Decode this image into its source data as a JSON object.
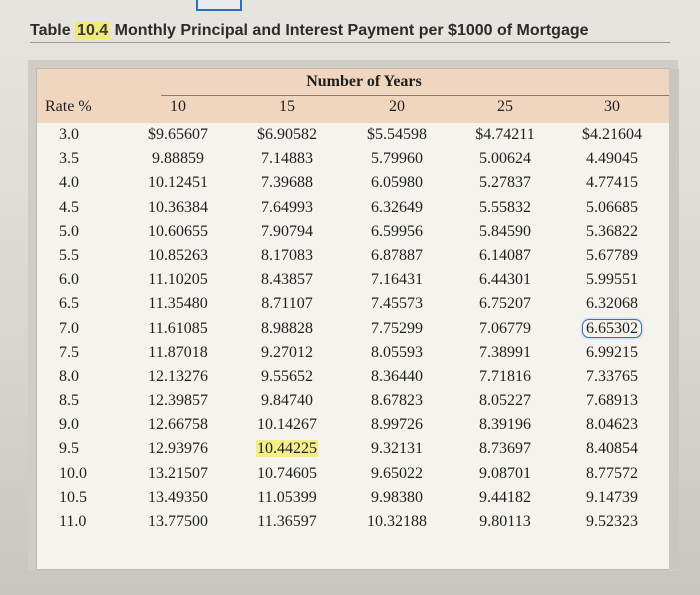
{
  "caption": {
    "prefix": "Table ",
    "number": "10.4",
    "title": " Monthly Principal and Interest Payment per $1000 of Mortgage"
  },
  "table": {
    "group_header": "Number of Years",
    "columns": [
      "Rate %",
      "10",
      "15",
      "20",
      "25",
      "30"
    ],
    "rows": [
      [
        "3.0",
        "$9.65607",
        "$6.90582",
        "$5.54598",
        "$4.74211",
        "$4.21604"
      ],
      [
        "3.5",
        "9.88859",
        "7.14883",
        "5.79960",
        "5.00624",
        "4.49045"
      ],
      [
        "4.0",
        "10.12451",
        "7.39688",
        "6.05980",
        "5.27837",
        "4.77415"
      ],
      [
        "4.5",
        "10.36384",
        "7.64993",
        "6.32649",
        "5.55832",
        "5.06685"
      ],
      [
        "5.0",
        "10.60655",
        "7.90794",
        "6.59956",
        "5.84590",
        "5.36822"
      ],
      [
        "5.5",
        "10.85263",
        "8.17083",
        "6.87887",
        "6.14087",
        "5.67789"
      ],
      [
        "6.0",
        "11.10205",
        "8.43857",
        "7.16431",
        "6.44301",
        "5.99551"
      ],
      [
        "6.5",
        "11.35480",
        "8.71107",
        "7.45573",
        "6.75207",
        "6.32068"
      ],
      [
        "7.0",
        "11.61085",
        "8.98828",
        "7.75299",
        "7.06779",
        "6.65302"
      ],
      [
        "7.5",
        "11.87018",
        "9.27012",
        "8.05593",
        "7.38991",
        "6.99215"
      ],
      [
        "8.0",
        "12.13276",
        "9.55652",
        "8.36440",
        "7.71816",
        "7.33765"
      ],
      [
        "8.5",
        "12.39857",
        "9.84740",
        "8.67823",
        "8.05227",
        "7.68913"
      ],
      [
        "9.0",
        "12.66758",
        "10.14267",
        "8.99726",
        "8.39196",
        "8.04623"
      ],
      [
        "9.5",
        "12.93976",
        "10.44225",
        "9.32131",
        "8.73697",
        "8.40854"
      ],
      [
        "10.0",
        "13.21507",
        "10.74605",
        "9.65022",
        "9.08701",
        "8.77572"
      ],
      [
        "10.5",
        "13.49350",
        "11.05399",
        "9.98380",
        "9.44182",
        "9.14739"
      ],
      [
        "11.0",
        "13.77500",
        "11.36597",
        "10.32188",
        "9.80113",
        "9.52323"
      ]
    ],
    "highlight_yellow": {
      "row": 13,
      "col": 2
    },
    "highlight_circle": {
      "row": 8,
      "col": 5
    }
  },
  "colors": {
    "header_band": "#f0d6bf",
    "yellow_highlight": "#f3ee8a",
    "circle_highlight": "#3b73b8"
  }
}
